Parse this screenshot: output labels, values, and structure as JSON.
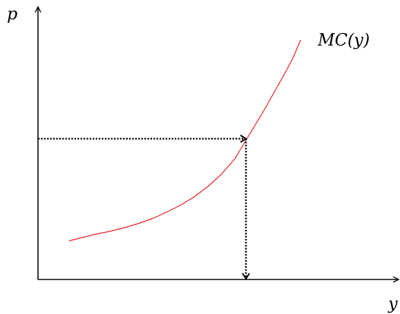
{
  "labels": {
    "y_axis": "p",
    "x_axis": "y",
    "curve": "MC(y)"
  },
  "colors": {
    "axis": "#000000",
    "curve": "#e8191a",
    "projection": "#000000",
    "background": "#ffffff"
  },
  "elements": {
    "curve_name": "marginal-cost-curve",
    "horizontal_projection": "price-to-curve-dotted-arrow",
    "vertical_projection": "curve-to-quantity-dotted-arrow"
  }
}
